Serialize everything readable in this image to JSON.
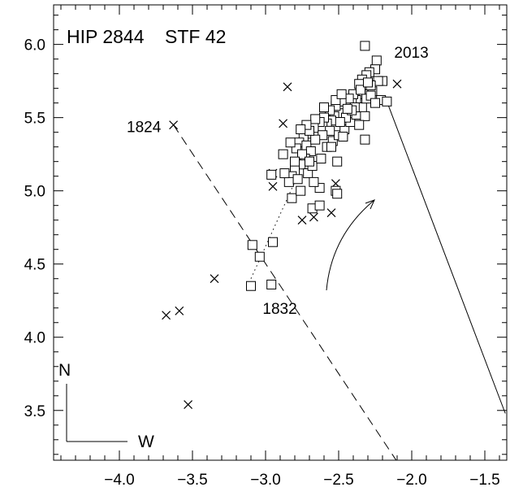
{
  "chart_data": {
    "type": "scatter",
    "title": "HIP 2844    STF 42",
    "xlabel": "",
    "ylabel": "",
    "xlim": [
      -4.45,
      -1.35
    ],
    "ylim": [
      3.16,
      6.27
    ],
    "grid": false,
    "x_ticks": [
      -4.0,
      -3.5,
      -3.0,
      -2.5,
      -2.0,
      -1.5
    ],
    "x_tick_labels": [
      "−4.0",
      "−3.5",
      "−3.0",
      "−2.5",
      "−2.0",
      "−1.5"
    ],
    "y_ticks": [
      3.5,
      4.0,
      4.5,
      5.0,
      5.5,
      6.0
    ],
    "y_tick_labels": [
      "3.5",
      "4.0",
      "4.5",
      "5.0",
      "5.5",
      "6.0"
    ],
    "series": [
      {
        "marker": "cross",
        "points": [
          [
            -3.63,
            5.45
          ],
          [
            -3.68,
            4.15
          ],
          [
            -3.59,
            4.18
          ],
          [
            -3.35,
            4.4
          ],
          [
            -3.53,
            3.54
          ],
          [
            -2.85,
            5.71
          ],
          [
            -2.88,
            5.46
          ],
          [
            -2.95,
            5.12
          ],
          [
            -2.95,
            5.03
          ],
          [
            -2.75,
            4.8
          ],
          [
            -2.67,
            4.82
          ],
          [
            -2.55,
            4.85
          ],
          [
            -2.52,
            5.05
          ],
          [
            -2.1,
            5.73
          ]
        ]
      },
      {
        "marker": "square",
        "points": [
          [
            -3.09,
            4.63
          ],
          [
            -3.04,
            4.55
          ],
          [
            -2.95,
            4.65
          ],
          [
            -3.1,
            4.35
          ],
          [
            -2.96,
            4.36
          ],
          [
            -2.32,
            5.99
          ],
          [
            -2.24,
            5.89
          ],
          [
            -2.2,
            5.75
          ],
          [
            -2.25,
            5.83
          ],
          [
            -2.29,
            5.81
          ],
          [
            -2.31,
            5.79
          ],
          [
            -2.34,
            5.76
          ],
          [
            -2.36,
            5.73
          ],
          [
            -2.3,
            5.7
          ],
          [
            -2.27,
            5.68
          ],
          [
            -2.33,
            5.66
          ],
          [
            -2.38,
            5.62
          ],
          [
            -2.41,
            5.6
          ],
          [
            -2.44,
            5.58
          ],
          [
            -2.47,
            5.55
          ],
          [
            -2.5,
            5.53
          ],
          [
            -2.53,
            5.51
          ],
          [
            -2.55,
            5.48
          ],
          [
            -2.58,
            5.46
          ],
          [
            -2.61,
            5.44
          ],
          [
            -2.4,
            5.66
          ],
          [
            -2.43,
            5.63
          ],
          [
            -2.48,
            5.61
          ],
          [
            -2.52,
            5.58
          ],
          [
            -2.56,
            5.55
          ],
          [
            -2.6,
            5.5
          ],
          [
            -2.63,
            5.47
          ],
          [
            -2.67,
            5.43
          ],
          [
            -2.71,
            5.39
          ],
          [
            -2.74,
            5.36
          ],
          [
            -2.77,
            5.33
          ],
          [
            -2.79,
            5.29
          ],
          [
            -2.72,
            5.31
          ],
          [
            -2.69,
            5.27
          ],
          [
            -2.73,
            5.22
          ],
          [
            -2.76,
            5.18
          ],
          [
            -2.8,
            5.14
          ],
          [
            -2.82,
            5.1
          ],
          [
            -2.84,
            5.06
          ],
          [
            -2.78,
            5.08
          ],
          [
            -2.71,
            5.12
          ],
          [
            -2.68,
            5.17
          ],
          [
            -2.62,
            5.22
          ],
          [
            -2.58,
            5.3
          ],
          [
            -2.54,
            5.34
          ],
          [
            -2.5,
            5.38
          ],
          [
            -2.46,
            5.42
          ],
          [
            -2.42,
            5.47
          ],
          [
            -2.38,
            5.52
          ],
          [
            -2.34,
            5.57
          ],
          [
            -2.31,
            5.63
          ],
          [
            -2.28,
            5.65
          ],
          [
            -2.21,
            5.62
          ],
          [
            -2.17,
            5.61
          ],
          [
            -2.23,
            5.75
          ],
          [
            -2.28,
            5.72
          ],
          [
            -2.35,
            5.69
          ],
          [
            -2.39,
            5.57
          ],
          [
            -2.45,
            5.5
          ],
          [
            -2.49,
            5.47
          ],
          [
            -2.56,
            5.41
          ],
          [
            -2.61,
            5.38
          ],
          [
            -2.66,
            5.35
          ],
          [
            -2.7,
            5.41
          ],
          [
            -2.75,
            5.25
          ],
          [
            -2.8,
            5.2
          ],
          [
            -2.88,
            5.25
          ],
          [
            -2.83,
            5.33
          ],
          [
            -2.82,
            4.95
          ],
          [
            -2.76,
            5.0
          ],
          [
            -2.68,
            4.88
          ],
          [
            -2.63,
            4.9
          ],
          [
            -2.63,
            5.02
          ],
          [
            -2.52,
            5.0
          ],
          [
            -2.51,
            5.2
          ],
          [
            -2.55,
            5.3
          ],
          [
            -2.47,
            5.37
          ],
          [
            -2.32,
            5.35
          ],
          [
            -2.32,
            5.51
          ],
          [
            -2.52,
            5.62
          ],
          [
            -2.48,
            5.66
          ],
          [
            -2.41,
            5.55
          ],
          [
            -2.36,
            5.45
          ],
          [
            -2.44,
            5.56
          ],
          [
            -2.6,
            5.57
          ],
          [
            -2.66,
            5.49
          ],
          [
            -2.72,
            5.45
          ],
          [
            -2.76,
            5.42
          ],
          [
            -2.7,
            5.2
          ],
          [
            -2.96,
            5.11
          ],
          [
            -2.87,
            5.12
          ],
          [
            -2.67,
            5.06
          ],
          [
            -2.51,
            4.98
          ],
          [
            -2.25,
            5.6
          ],
          [
            -2.3,
            5.74
          ]
        ]
      }
    ],
    "lines": [
      {
        "style": "dashed",
        "from": [
          -3.63,
          5.45
        ],
        "to": [
          -2.06,
          3.09
        ]
      },
      {
        "style": "dotted",
        "from": [
          -3.1,
          4.4
        ],
        "to": [
          -2.6,
          5.5
        ]
      },
      {
        "style": "solid",
        "from": [
          -2.17,
          5.61
        ],
        "to": [
          -1.36,
          3.48
        ]
      }
    ],
    "annotations": [
      {
        "text": "1824",
        "x": -3.95,
        "y": 5.4
      },
      {
        "text": "1832",
        "x": -3.02,
        "y": 4.16
      },
      {
        "text": "2013",
        "x": -2.12,
        "y": 5.91
      }
    ],
    "orientation": {
      "north": "N",
      "west": "W"
    }
  }
}
